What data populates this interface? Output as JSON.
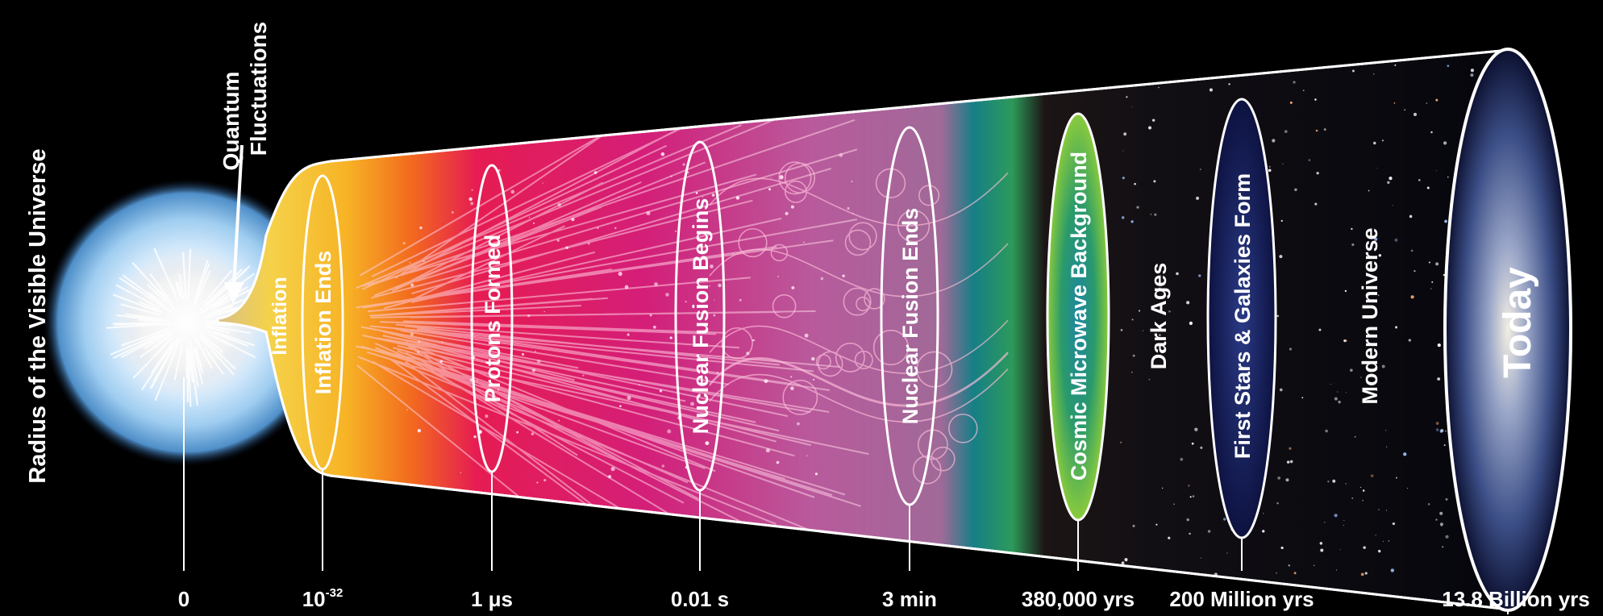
{
  "diagram": {
    "axis_title": "Radius of the Visible Universe",
    "callout": {
      "line1": "Quantum",
      "line2": "Fluctuations"
    },
    "stages": {
      "inflation": "Inflation",
      "inflation_ends": "Inflation Ends",
      "protons_formed": "Protons Formed",
      "nuclear_fusion_begins": "Nuclear Fusion Begins",
      "nuclear_fusion_ends": "Nuclear Fusion Ends",
      "cmb": "Cosmic Microwave Background",
      "dark_ages": "Dark Ages",
      "first_stars": "First Stars & Galaxies Form",
      "modern_universe": "Modern Universe",
      "today": "Today"
    },
    "timeline": {
      "t0": "0",
      "t_inflation_ends_base": "10",
      "t_inflation_ends_exp": "-32",
      "t_protons": "1 μs",
      "t_fusion_begins": "0.01 s",
      "t_fusion_ends": "3 min",
      "t_cmb": "380,000 yrs",
      "t_first_stars": "200 Million yrs",
      "t_today": "13.8 Billion yrs"
    },
    "colors": {
      "background": "#000000",
      "halo": "#8fc4ec",
      "inflation_gold": "#f7c326",
      "plasma_magenta": "#e0186a",
      "fusion_mauve": "#b05a98",
      "cmb_teal": "#1aa39a",
      "dark_ages": "#1a1414",
      "outline": "#ffffff"
    }
  }
}
